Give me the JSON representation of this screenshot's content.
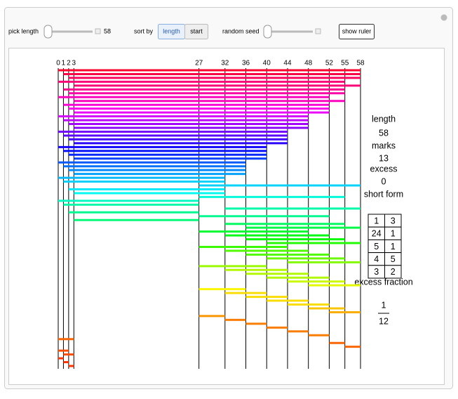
{
  "controls": {
    "pick_length_label": "pick length",
    "pick_length_value": 58,
    "sort_by_label": "sort by",
    "sort_options": [
      "length",
      "start"
    ],
    "random_seed_label": "random seed",
    "show_ruler": "show ruler"
  },
  "chart_data": {
    "type": "ruler",
    "marks": [
      0,
      1,
      2,
      3,
      27,
      32,
      36,
      40,
      44,
      48,
      52,
      55,
      58
    ],
    "xlim": [
      0,
      58
    ]
  },
  "info": {
    "length_label": "length",
    "length": 58,
    "marks_label": "marks",
    "marks": 13,
    "excess_label": "excess",
    "excess": 0,
    "short_form_label": "short form",
    "short_form": [
      [
        1,
        3
      ],
      [
        24,
        1
      ],
      [
        5,
        1
      ],
      [
        4,
        5
      ],
      [
        3,
        2
      ]
    ],
    "excess_fraction_label": "excess fraction",
    "excess_fraction": {
      "numerator": 1,
      "denominator": 12
    }
  }
}
